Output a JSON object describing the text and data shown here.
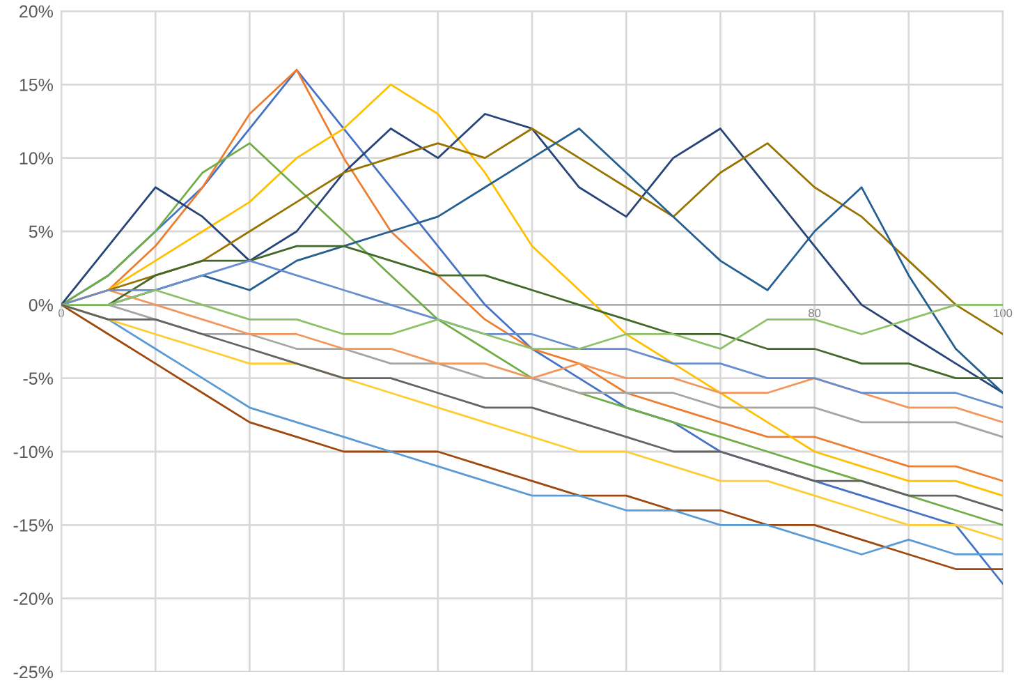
{
  "chart_data": {
    "type": "line",
    "x": [
      0,
      5,
      10,
      15,
      20,
      25,
      30,
      35,
      40,
      45,
      50,
      55,
      60,
      65,
      70,
      75,
      80,
      85,
      90,
      95,
      100
    ],
    "series": [
      {
        "color": "#4472c4",
        "values": [
          0,
          2,
          5,
          8,
          12,
          16,
          12,
          8,
          4,
          0,
          -3,
          -5,
          -7,
          -8,
          -10,
          -11,
          -12,
          -13,
          -14,
          -15,
          -19
        ]
      },
      {
        "color": "#ed7d31",
        "values": [
          0,
          1,
          4,
          8,
          13,
          16,
          10,
          5,
          2,
          -1,
          -3,
          -4,
          -6,
          -7,
          -8,
          -9,
          -9,
          -10,
          -11,
          -11,
          -12
        ]
      },
      {
        "color": "#ffc000",
        "values": [
          0,
          1,
          3,
          5,
          7,
          10,
          12,
          15,
          13,
          9,
          4,
          1,
          -2,
          -4,
          -6,
          -8,
          -10,
          -11,
          -12,
          -12,
          -13
        ]
      },
      {
        "color": "#70ad47",
        "values": [
          0,
          2,
          5,
          9,
          11,
          8,
          5,
          2,
          -1,
          -3,
          -5,
          -6,
          -7,
          -8,
          -9,
          -10,
          -11,
          -12,
          -13,
          -14,
          -15
        ]
      },
      {
        "color": "#264478",
        "values": [
          0,
          4,
          8,
          6,
          3,
          5,
          9,
          12,
          10,
          13,
          12,
          8,
          6,
          10,
          12,
          8,
          4,
          0,
          -2,
          -4,
          -6
        ]
      },
      {
        "color": "#997300",
        "values": [
          0,
          1,
          2,
          3,
          5,
          7,
          9,
          10,
          11,
          10,
          12,
          10,
          8,
          6,
          9,
          11,
          8,
          6,
          3,
          0,
          -2
        ]
      },
      {
        "color": "#255e91",
        "values": [
          0,
          0,
          1,
          2,
          1,
          3,
          4,
          5,
          6,
          8,
          10,
          12,
          9,
          6,
          3,
          1,
          5,
          8,
          2,
          -3,
          -6
        ]
      },
      {
        "color": "#9e480e",
        "values": [
          0,
          -2,
          -4,
          -6,
          -8,
          -9,
          -10,
          -10,
          -10,
          -11,
          -12,
          -13,
          -13,
          -14,
          -14,
          -15,
          -15,
          -16,
          -17,
          -18,
          -18
        ]
      },
      {
        "color": "#5b9bd5",
        "values": [
          0,
          -1,
          -3,
          -5,
          -7,
          -8,
          -9,
          -10,
          -11,
          -12,
          -13,
          -13,
          -14,
          -14,
          -15,
          -15,
          -16,
          -17,
          -16,
          -17,
          -17
        ]
      },
      {
        "color": "#a5a5a5",
        "values": [
          0,
          0,
          -1,
          -2,
          -2,
          -3,
          -3,
          -4,
          -4,
          -5,
          -5,
          -6,
          -6,
          -6,
          -7,
          -7,
          -7,
          -8,
          -8,
          -8,
          -9
        ]
      },
      {
        "color": "#f1975a",
        "values": [
          0,
          1,
          0,
          -1,
          -2,
          -2,
          -3,
          -3,
          -4,
          -4,
          -5,
          -4,
          -5,
          -5,
          -6,
          -6,
          -5,
          -6,
          -7,
          -7,
          -8
        ]
      },
      {
        "color": "#43682b",
        "values": [
          0,
          0,
          2,
          3,
          3,
          4,
          4,
          3,
          2,
          2,
          1,
          0,
          -1,
          -2,
          -2,
          -3,
          -3,
          -4,
          -4,
          -5,
          -5
        ]
      },
      {
        "color": "#ffcd33",
        "values": [
          0,
          -1,
          -2,
          -3,
          -4,
          -4,
          -5,
          -6,
          -7,
          -8,
          -9,
          -10,
          -10,
          -11,
          -12,
          -12,
          -13,
          -14,
          -15,
          -15,
          -16
        ]
      },
      {
        "color": "#698ed0",
        "values": [
          0,
          1,
          1,
          2,
          3,
          2,
          1,
          0,
          -1,
          -2,
          -2,
          -3,
          -3,
          -4,
          -4,
          -5,
          -5,
          -6,
          -6,
          -6,
          -7
        ]
      },
      {
        "color": "#8cc168",
        "values": [
          0,
          0,
          1,
          0,
          -1,
          -1,
          -2,
          -2,
          -1,
          -2,
          -3,
          -3,
          -2,
          -2,
          -3,
          -1,
          -1,
          -2,
          -1,
          0,
          0
        ]
      },
      {
        "color": "#636363",
        "values": [
          0,
          -1,
          -1,
          -2,
          -3,
          -4,
          -5,
          -5,
          -6,
          -7,
          -7,
          -8,
          -9,
          -10,
          -10,
          -11,
          -12,
          -12,
          -13,
          -13,
          -14
        ]
      }
    ],
    "xlim": [
      0,
      100
    ],
    "xticks": [
      0,
      {
        "value": 10,
        "label": null
      },
      {
        "value": 20,
        "label": null
      },
      {
        "value": 30,
        "label": null
      },
      {
        "value": 40,
        "label": null
      },
      {
        "value": 50,
        "label": null
      },
      {
        "value": 60,
        "label": null
      },
      {
        "value": 70,
        "label": null
      },
      80,
      {
        "value": 90,
        "label": null
      },
      100
    ],
    "ylim": [
      -25,
      20
    ],
    "yticks": [
      {
        "value": -25,
        "label": "-25%"
      },
      {
        "value": -20,
        "label": "-20%"
      },
      {
        "value": -15,
        "label": "-15%"
      },
      {
        "value": -10,
        "label": "-10%"
      },
      {
        "value": -5,
        "label": "-5%"
      },
      {
        "value": 0,
        "label": "0%"
      },
      {
        "value": 5,
        "label": "5%"
      },
      {
        "value": 10,
        "label": "10%"
      },
      {
        "value": 15,
        "label": "15%"
      },
      {
        "value": 20,
        "label": "20%"
      }
    ],
    "grid": true,
    "legend": false,
    "marker": "none",
    "line_style": "solid"
  }
}
